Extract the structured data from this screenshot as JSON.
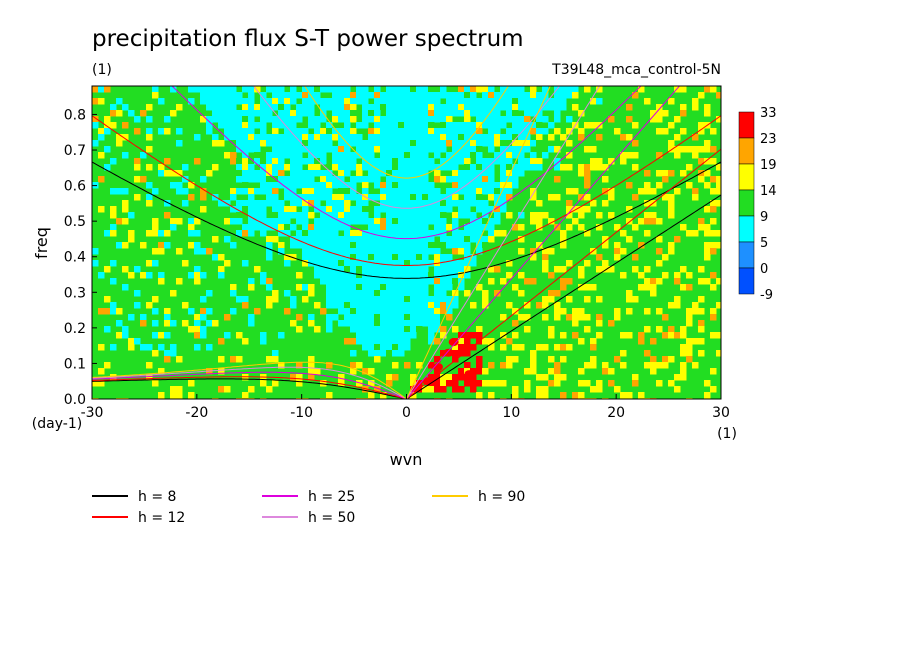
{
  "chart_data": {
    "type": "heatmap",
    "title": "precipitation flux S-T power spectrum",
    "subtitle_left": "(1)",
    "subtitle_right": "T39L48_mca_control-5N",
    "xlabel": "wvn",
    "ylabel": "freq",
    "x_unit": "(1)",
    "y_unit": "(day-1)",
    "xlim": [
      -30,
      30
    ],
    "ylim": [
      0,
      0.88
    ],
    "x_ticks": [
      -30,
      -20,
      -10,
      0,
      10,
      20,
      30
    ],
    "x_tick_labels": [
      "-30",
      "-20",
      "-10",
      "0",
      "10",
      "20",
      "30"
    ],
    "y_ticks": [
      0.0,
      0.1,
      0.2,
      0.3,
      0.4,
      0.5,
      0.6,
      0.7,
      0.8
    ],
    "y_tick_labels": [
      "0.0",
      "0.1",
      "0.2",
      "0.3",
      "0.4",
      "0.5",
      "0.6",
      "0.7",
      "0.8"
    ],
    "colorbar": {
      "labels": [
        "33",
        "23",
        "19",
        "14",
        "9",
        "5",
        "0",
        "-9"
      ],
      "colors": [
        "#ff0000",
        "#ffa500",
        "#ffff00",
        "#22dd22",
        "#22dd22",
        "#00ffff",
        "#1e90ff",
        "#0050ff"
      ]
    },
    "dispersion_curves": [
      {
        "label": "h =  8",
        "h": 8,
        "color": "#000000"
      },
      {
        "label": "h = 12",
        "h": 12,
        "color": "#ff0000"
      },
      {
        "label": "h = 25",
        "h": 25,
        "color": "#dd00dd"
      },
      {
        "label": "h = 50",
        "h": 50,
        "color": "#dd88dd"
      },
      {
        "label": "h = 90",
        "h": 90,
        "color": "#ffcc00"
      }
    ]
  }
}
